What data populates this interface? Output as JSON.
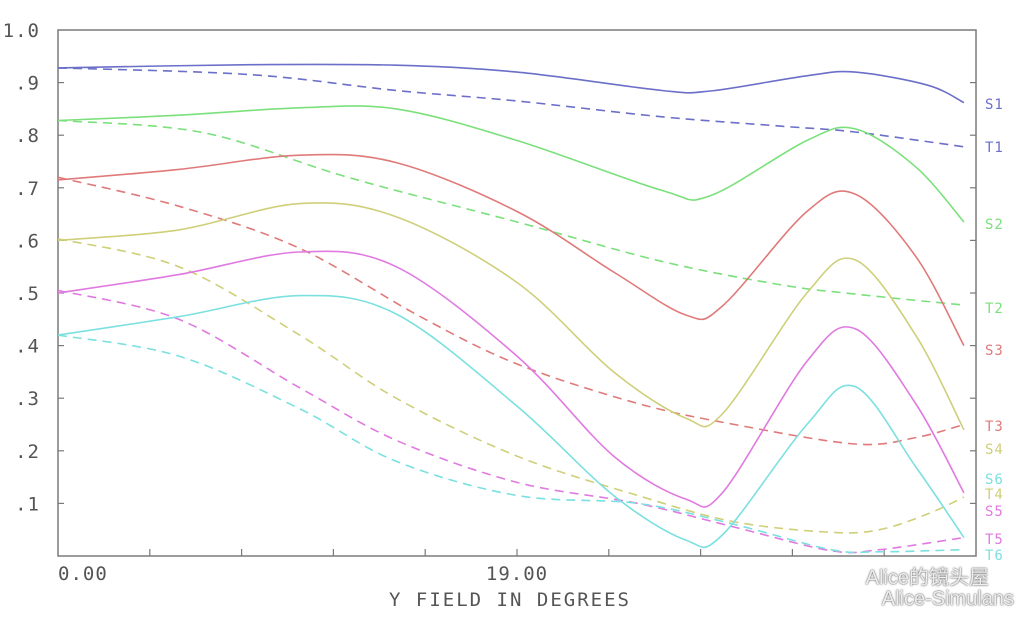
{
  "chart_data": {
    "type": "line",
    "xlabel": "Y FIELD IN DEGREES",
    "x_ticks": [
      "0.00",
      "19.00"
    ],
    "y_ticks": [
      "1.0",
      ".9",
      ".8",
      ".7",
      ".6",
      ".5",
      ".4",
      ".3",
      ".2",
      ".1"
    ],
    "xlim": [
      0,
      38
    ],
    "ylim": [
      0,
      1.0
    ],
    "grid": false,
    "legend": "right, inline labels",
    "series": [
      {
        "name": "S1",
        "color": "#6b6fc8",
        "style": "solid",
        "points": [
          [
            0,
            0.928
          ],
          [
            8,
            0.934
          ],
          [
            14,
            0.933
          ],
          [
            19,
            0.92
          ],
          [
            25,
            0.885
          ],
          [
            27,
            0.884
          ],
          [
            31,
            0.913
          ],
          [
            33,
            0.92
          ],
          [
            36,
            0.895
          ],
          [
            37.5,
            0.862
          ]
        ]
      },
      {
        "name": "T1",
        "color": "#6b6fc8",
        "style": "dashed",
        "points": [
          [
            0,
            0.928
          ],
          [
            8,
            0.915
          ],
          [
            14,
            0.885
          ],
          [
            19,
            0.865
          ],
          [
            25,
            0.835
          ],
          [
            30,
            0.817
          ],
          [
            33,
            0.806
          ],
          [
            37.5,
            0.778
          ]
        ]
      },
      {
        "name": "S2",
        "color": "#7be07b",
        "style": "solid",
        "points": [
          [
            0,
            0.828
          ],
          [
            5,
            0.838
          ],
          [
            10,
            0.852
          ],
          [
            14,
            0.85
          ],
          [
            19,
            0.79
          ],
          [
            25,
            0.695
          ],
          [
            27,
            0.685
          ],
          [
            31,
            0.79
          ],
          [
            33,
            0.812
          ],
          [
            35.5,
            0.74
          ],
          [
            37.5,
            0.635
          ]
        ]
      },
      {
        "name": "T2",
        "color": "#7be07b",
        "style": "dashed",
        "points": [
          [
            0,
            0.828
          ],
          [
            6,
            0.805
          ],
          [
            12,
            0.72
          ],
          [
            19,
            0.635
          ],
          [
            25,
            0.56
          ],
          [
            30,
            0.515
          ],
          [
            33,
            0.498
          ],
          [
            37.5,
            0.477
          ]
        ]
      },
      {
        "name": "S3",
        "color": "#e07a7a",
        "style": "solid",
        "points": [
          [
            0,
            0.715
          ],
          [
            5,
            0.735
          ],
          [
            10,
            0.762
          ],
          [
            14,
            0.748
          ],
          [
            19,
            0.655
          ],
          [
            23,
            0.54
          ],
          [
            26,
            0.458
          ],
          [
            27.5,
            0.475
          ],
          [
            31,
            0.655
          ],
          [
            33,
            0.688
          ],
          [
            35.5,
            0.57
          ],
          [
            37.5,
            0.4
          ]
        ]
      },
      {
        "name": "T3",
        "color": "#e07a7a",
        "style": "dashed",
        "points": [
          [
            0,
            0.72
          ],
          [
            5,
            0.665
          ],
          [
            10,
            0.585
          ],
          [
            15,
            0.455
          ],
          [
            19,
            0.365
          ],
          [
            24,
            0.29
          ],
          [
            28,
            0.25
          ],
          [
            33,
            0.213
          ],
          [
            35.5,
            0.225
          ],
          [
            37.5,
            0.25
          ]
        ]
      },
      {
        "name": "S4",
        "color": "#cfcf7a",
        "style": "solid",
        "points": [
          [
            0,
            0.6
          ],
          [
            5,
            0.62
          ],
          [
            10,
            0.67
          ],
          [
            14,
            0.645
          ],
          [
            19,
            0.52
          ],
          [
            23,
            0.35
          ],
          [
            26,
            0.262
          ],
          [
            27.5,
            0.27
          ],
          [
            31,
            0.5
          ],
          [
            33,
            0.563
          ],
          [
            35.5,
            0.42
          ],
          [
            37.5,
            0.24
          ]
        ]
      },
      {
        "name": "T4",
        "color": "#cfcf7a",
        "style": "dashed",
        "points": [
          [
            0,
            0.603
          ],
          [
            5,
            0.55
          ],
          [
            10,
            0.42
          ],
          [
            14,
            0.3
          ],
          [
            19,
            0.19
          ],
          [
            24,
            0.115
          ],
          [
            28,
            0.065
          ],
          [
            32,
            0.045
          ],
          [
            34,
            0.05
          ],
          [
            36,
            0.08
          ],
          [
            37.5,
            0.112
          ]
        ]
      },
      {
        "name": "S5",
        "color": "#e07ae0",
        "style": "solid",
        "points": [
          [
            0,
            0.5
          ],
          [
            5,
            0.535
          ],
          [
            10,
            0.578
          ],
          [
            14,
            0.55
          ],
          [
            19,
            0.38
          ],
          [
            23,
            0.19
          ],
          [
            26,
            0.108
          ],
          [
            27.5,
            0.12
          ],
          [
            31,
            0.37
          ],
          [
            33,
            0.432
          ],
          [
            35.5,
            0.29
          ],
          [
            37.5,
            0.12
          ]
        ]
      },
      {
        "name": "T5",
        "color": "#e07ae0",
        "style": "dashed",
        "points": [
          [
            0,
            0.505
          ],
          [
            5,
            0.45
          ],
          [
            10,
            0.32
          ],
          [
            14,
            0.22
          ],
          [
            19,
            0.14
          ],
          [
            24,
            0.1
          ],
          [
            28,
            0.055
          ],
          [
            32,
            0.01
          ],
          [
            34,
            0.012
          ],
          [
            37.5,
            0.035
          ]
        ]
      },
      {
        "name": "S6",
        "color": "#7be0e0",
        "style": "solid",
        "points": [
          [
            0,
            0.42
          ],
          [
            5,
            0.455
          ],
          [
            10,
            0.495
          ],
          [
            14,
            0.46
          ],
          [
            19,
            0.285
          ],
          [
            23,
            0.115
          ],
          [
            26,
            0.03
          ],
          [
            27.5,
            0.04
          ],
          [
            31,
            0.25
          ],
          [
            33,
            0.322
          ],
          [
            35.5,
            0.17
          ],
          [
            37.5,
            0.035
          ]
        ]
      },
      {
        "name": "T6",
        "color": "#7be0e0",
        "style": "dashed",
        "points": [
          [
            0,
            0.42
          ],
          [
            5,
            0.38
          ],
          [
            10,
            0.28
          ],
          [
            14,
            0.18
          ],
          [
            19,
            0.115
          ],
          [
            24,
            0.1
          ],
          [
            28,
            0.06
          ],
          [
            32,
            0.012
          ],
          [
            34,
            0.008
          ],
          [
            37.5,
            0.012
          ]
        ]
      }
    ]
  },
  "watermark": {
    "line1": "Alice的镜头屋",
    "line2": "Alice-Simulans"
  }
}
